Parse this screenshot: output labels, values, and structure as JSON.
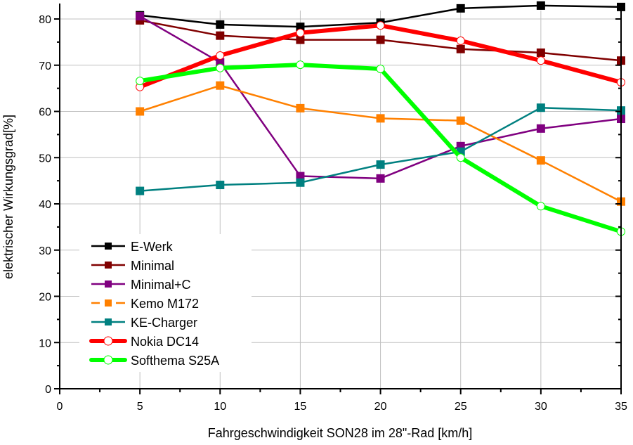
{
  "chart_data": {
    "type": "line",
    "title": "",
    "xlabel": "Fahrgeschwindigkeit SON28 im 28\"-Rad [km/h]",
    "ylabel": "elektrischer Wirkungsgrad[%]",
    "xlim": [
      0,
      35
    ],
    "ylim": [
      0,
      83
    ],
    "xticks": [
      0,
      5,
      10,
      15,
      20,
      25,
      30,
      35
    ],
    "xtick_labels": [
      "0",
      "5",
      "10",
      "15",
      "20",
      "25",
      "30",
      "35"
    ],
    "yticks": [
      0,
      10,
      20,
      30,
      40,
      50,
      60,
      70,
      80
    ],
    "ytick_labels": [
      "0",
      "10",
      "20",
      "30",
      "40",
      "50",
      "60",
      "70",
      "80"
    ],
    "grid": true,
    "legend_position": "bottom-left",
    "x": [
      5,
      10,
      15,
      20,
      25,
      30,
      35
    ],
    "series": [
      {
        "name": "E-Werk",
        "color": "#000000",
        "marker": "square",
        "style": "solid",
        "weight": "thin",
        "values": [
          80.8,
          78.8,
          78.3,
          79.2,
          82.3,
          82.9,
          82.6
        ]
      },
      {
        "name": "Minimal",
        "color": "#800000",
        "marker": "square",
        "style": "solid",
        "weight": "thin",
        "values": [
          79.7,
          76.4,
          75.5,
          75.5,
          73.5,
          72.7,
          71.0
        ]
      },
      {
        "name": "Minimal+C",
        "color": "#800080",
        "marker": "square",
        "style": "solid",
        "weight": "thin",
        "values": [
          80.6,
          70.6,
          46.0,
          45.5,
          52.5,
          56.3,
          58.4
        ]
      },
      {
        "name": "Kemo M172",
        "color": "#ff8000",
        "marker": "square",
        "style": "dashed-gap",
        "weight": "thin",
        "values": [
          60.0,
          65.6,
          60.7,
          58.5,
          58.0,
          49.4,
          40.5
        ]
      },
      {
        "name": "KE-Charger",
        "color": "#008080",
        "marker": "square",
        "style": "solid",
        "weight": "thin",
        "values": [
          42.8,
          44.1,
          44.6,
          48.5,
          51.3,
          60.8,
          60.2
        ]
      },
      {
        "name": "Nokia DC14",
        "color": "#ff0000",
        "marker": "open-circle",
        "style": "solid",
        "weight": "thick",
        "values": [
          65.3,
          72.1,
          77.0,
          78.6,
          75.3,
          71.0,
          66.3
        ]
      },
      {
        "name": "Softhema S25A",
        "color": "#00ff00",
        "marker": "open-circle",
        "style": "solid",
        "weight": "thick",
        "values": [
          66.6,
          69.4,
          70.1,
          69.2,
          50.0,
          39.5,
          34.0
        ]
      }
    ]
  }
}
